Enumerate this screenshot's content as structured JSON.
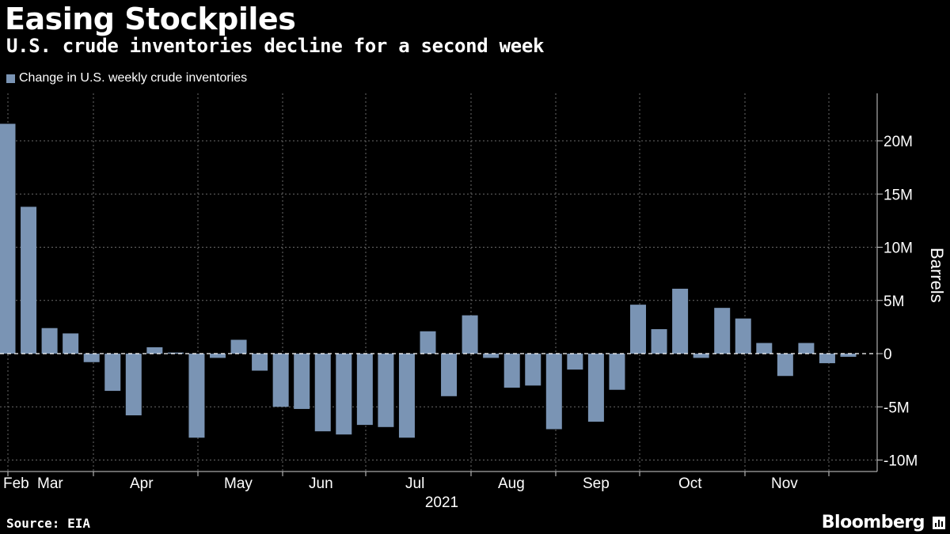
{
  "header": {
    "title": "Easing Stockpiles",
    "subtitle": "U.S. crude inventories decline for a second week"
  },
  "legend": {
    "label": "Change in U.S. weekly crude inventories",
    "color": "#7a94b4"
  },
  "footer": {
    "source": "Source: EIA",
    "brand": "Bloomberg"
  },
  "chart_data": {
    "type": "bar",
    "title": "Easing Stockpiles",
    "subtitle": "U.S. crude inventories decline for a second week",
    "ylabel": "Barrels",
    "year_label": "2021",
    "ylim": [
      -10.5,
      24
    ],
    "y_ticks": [
      20,
      15,
      10,
      5,
      0,
      -5,
      -10
    ],
    "y_tick_labels": [
      "20M",
      "15M",
      "10M",
      "5M",
      "0",
      "-5M",
      "-10M"
    ],
    "x_month_labels": [
      "Feb",
      "Mar",
      "Apr",
      "May",
      "Jun",
      "Jul",
      "Aug",
      "Sep",
      "Oct",
      "Nov"
    ],
    "series": [
      {
        "name": "Change in U.S. weekly crude inventories",
        "unit": "million barrels",
        "values": [
          21.6,
          13.8,
          2.4,
          1.9,
          -0.8,
          -3.5,
          -5.8,
          0.6,
          0.1,
          -7.9,
          -0.4,
          1.3,
          -1.6,
          -5.0,
          -5.2,
          -7.3,
          -7.6,
          -6.7,
          -6.9,
          -7.9,
          2.1,
          -4.0,
          3.6,
          -0.4,
          -3.2,
          -3.0,
          -7.1,
          -1.5,
          -6.4,
          -3.4,
          4.6,
          2.3,
          6.1,
          -0.4,
          4.3,
          3.3,
          1.0,
          -2.1,
          1.0,
          -0.9,
          -0.3
        ]
      }
    ],
    "grid": true,
    "legend_position": "top-left"
  }
}
